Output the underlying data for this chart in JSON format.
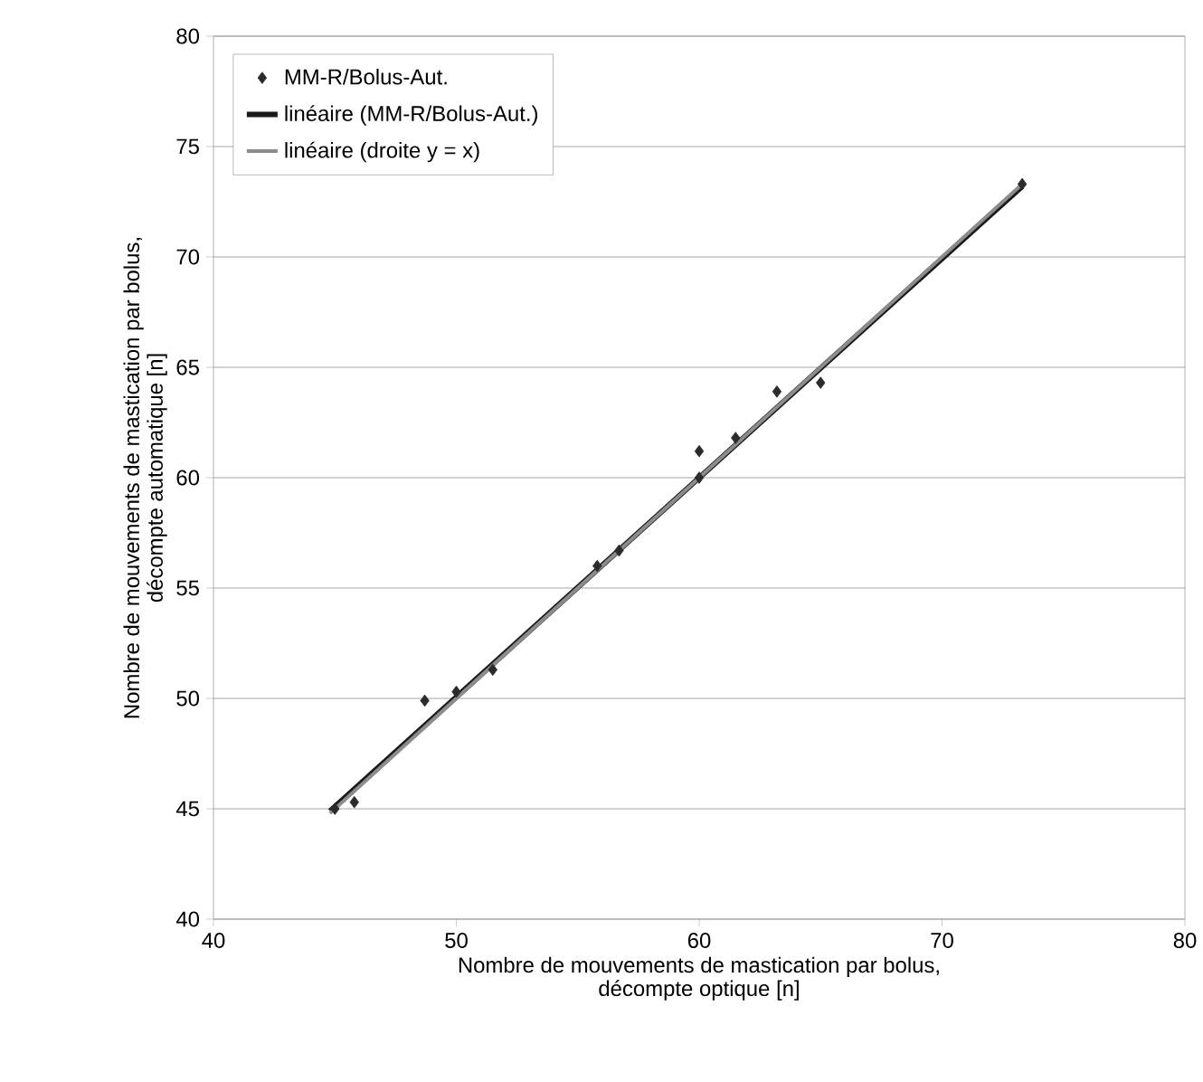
{
  "chart_data": {
    "type": "scatter",
    "xlabel": "Nombre de mouvements de mastication par bolus,\ndécompte optique [n]",
    "ylabel": "Nombre de mouvements de mastication par bolus,\ndécompte automatique [n]",
    "xlim": [
      40,
      80
    ],
    "ylim": [
      40,
      80
    ],
    "xticks": [
      40,
      50,
      60,
      70,
      80
    ],
    "yticks": [
      40,
      45,
      50,
      55,
      60,
      65,
      70,
      75,
      80
    ],
    "grid": "y",
    "legend": "top left",
    "series": [
      {
        "name": "MM-R/Bolus-Aut.",
        "marker": "diamond",
        "color": "#2b2b2b",
        "x": [
          45.0,
          45.8,
          48.7,
          50.0,
          51.5,
          55.8,
          56.7,
          60.0,
          60.0,
          61.5,
          63.2,
          65.0,
          73.3
        ],
        "values": [
          45.0,
          45.3,
          49.9,
          50.3,
          51.3,
          56.0,
          56.7,
          61.2,
          60.0,
          61.8,
          63.9,
          64.3,
          73.3
        ]
      },
      {
        "name": "linéaire (MM-R/Bolus-Aut.)",
        "type": "line",
        "marker": "none",
        "line_style": "solid",
        "color": "#1a1a1a",
        "x": [
          44.8,
          73.3
        ],
        "values": [
          44.9,
          73.2
        ]
      },
      {
        "name": "linéaire (droite y = x)",
        "type": "line",
        "marker": "none",
        "line_style": "solid",
        "color": "#8c8c8c",
        "x": [
          44.8,
          73.3
        ],
        "values": [
          44.8,
          73.3
        ]
      }
    ]
  }
}
